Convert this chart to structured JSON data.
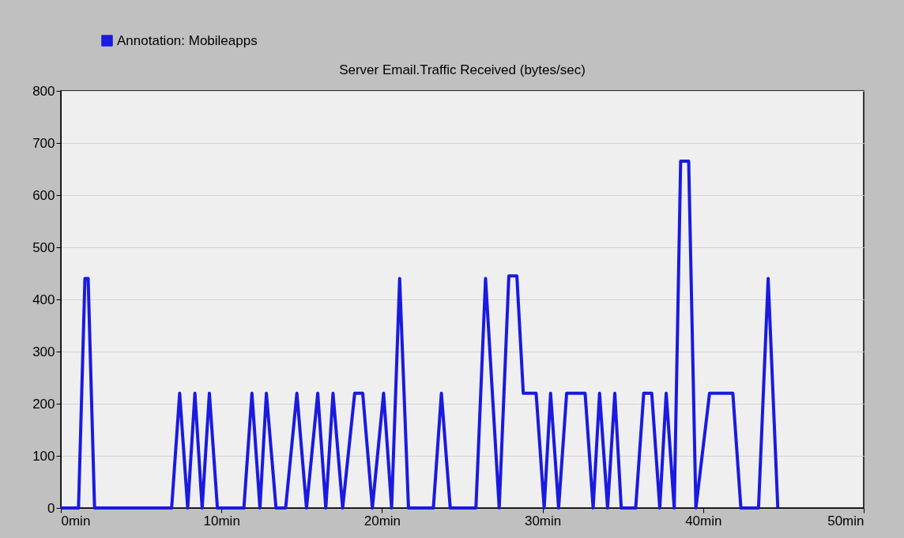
{
  "chart_data": {
    "type": "line",
    "title": "Server Email.Traffic Received (bytes/sec)",
    "xlim": [
      0,
      50
    ],
    "xticks": [
      {
        "value": 0,
        "label": "0min"
      },
      {
        "value": 10,
        "label": "10min"
      },
      {
        "value": 20,
        "label": "20min"
      },
      {
        "value": 30,
        "label": "30min"
      },
      {
        "value": 40,
        "label": "40min"
      },
      {
        "value": 50,
        "label": "50min"
      }
    ],
    "ylim": [
      0,
      800
    ],
    "yticks": [
      0,
      100,
      200,
      300,
      400,
      500,
      600,
      700,
      800
    ],
    "grid": "y",
    "legend": "top left",
    "marker": "none",
    "line_style": "solid",
    "series": [
      {
        "name": "Annotation: Mobileapps",
        "color": "#1a1ae0",
        "x": [
          0,
          1.1,
          1.5,
          1.7,
          2.1,
          6.9,
          7.4,
          7.9,
          8.35,
          8.8,
          9.25,
          9.75,
          11.4,
          11.9,
          12.4,
          12.8,
          13.4,
          14.0,
          14.7,
          15.3,
          16.0,
          16.5,
          16.95,
          17.55,
          18.3,
          18.8,
          19.4,
          20.1,
          20.6,
          21.1,
          21.65,
          23.2,
          23.7,
          24.25,
          25.85,
          26.45,
          27.3,
          27.9,
          28.4,
          28.8,
          29.6,
          30.1,
          30.5,
          31.0,
          31.5,
          32.65,
          33.15,
          33.55,
          34.05,
          34.5,
          34.9,
          35.8,
          36.3,
          36.8,
          37.3,
          37.7,
          38.2,
          38.6,
          39.1,
          39.55,
          40.4,
          41.85,
          42.35,
          43.45,
          44.05,
          44.65
        ],
        "values": [
          0,
          0,
          440,
          440,
          0,
          0,
          220,
          0,
          220,
          0,
          220,
          0,
          0,
          220,
          0,
          220,
          0,
          0,
          220,
          0,
          220,
          0,
          220,
          0,
          220,
          220,
          0,
          220,
          0,
          440,
          0,
          0,
          220,
          0,
          0,
          440,
          0,
          445,
          445,
          220,
          220,
          0,
          220,
          0,
          220,
          220,
          0,
          220,
          0,
          220,
          0,
          0,
          220,
          220,
          0,
          220,
          0,
          665,
          665,
          0,
          220,
          220,
          0,
          0,
          440,
          0
        ]
      }
    ]
  }
}
